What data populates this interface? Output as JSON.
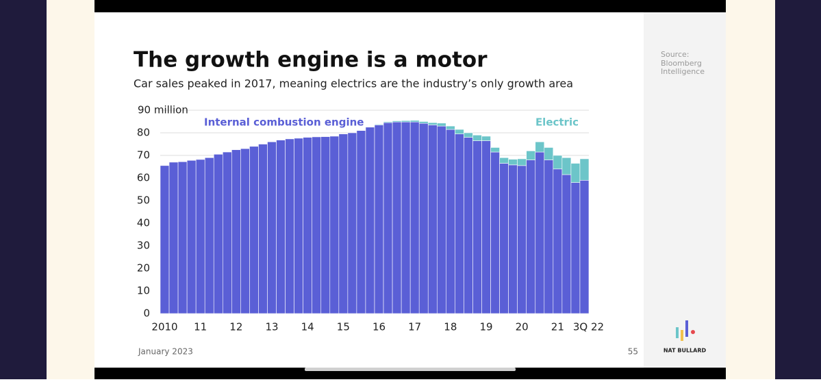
{
  "header": {
    "title": "The growth engine is a motor",
    "subtitle": "Car sales peaked in 2017, meaning electrics are the industry’s only growth area"
  },
  "sidebar": {
    "source_lines": [
      "Source:",
      "Bloomberg",
      "Intelligence"
    ],
    "brand": "NAT BULLARD"
  },
  "footer": {
    "date": "January 2023",
    "page": "55"
  },
  "chart_data": {
    "type": "stacked_bar",
    "categories": [
      "2010",
      null,
      null,
      null,
      "11",
      null,
      null,
      null,
      "12",
      null,
      null,
      null,
      "13",
      null,
      null,
      null,
      "14",
      null,
      null,
      null,
      "15",
      null,
      null,
      null,
      "16",
      null,
      null,
      null,
      "17",
      null,
      null,
      null,
      "18",
      null,
      null,
      null,
      "19",
      null,
      null,
      null,
      "20",
      null,
      null,
      null,
      "21",
      null,
      null,
      "3Q 22"
    ],
    "series": [
      {
        "name": "Internal combustion engine",
        "color": "#5a5fd6",
        "values": [
          65.5,
          67,
          67.2,
          67.8,
          68.2,
          69,
          70.5,
          71.5,
          72.5,
          73,
          74,
          75,
          76,
          76.8,
          77.3,
          77.6,
          78,
          78.2,
          78.3,
          78.5,
          79.5,
          80,
          81,
          82.5,
          83.5,
          84.5,
          84.8,
          84.8,
          84.8,
          84.2,
          83.5,
          83,
          81.5,
          79.5,
          78,
          76.5,
          76.5,
          71.5,
          66.5,
          65.8,
          65.5,
          68,
          71.5,
          68,
          64,
          61.5,
          58,
          59
        ]
      },
      {
        "name": "Electric",
        "color": "#6cc5c9",
        "values": [
          0,
          0,
          0,
          0,
          0,
          0,
          0,
          0,
          0,
          0,
          0,
          0,
          0,
          0,
          0,
          0,
          0,
          0,
          0,
          0,
          0,
          0,
          0,
          0,
          0.3,
          0.4,
          0.5,
          0.6,
          0.7,
          0.8,
          1,
          1.3,
          1.5,
          2,
          2,
          2.5,
          2,
          2,
          2.5,
          2.5,
          3,
          4,
          4.5,
          5.5,
          6,
          7.5,
          8.5,
          9.5
        ]
      }
    ],
    "ylim": [
      0,
      90
    ],
    "yticks": [
      0,
      10,
      20,
      30,
      40,
      50,
      60,
      70,
      80,
      {
        "value": 90,
        "label": "90 million"
      }
    ],
    "grid": true
  }
}
